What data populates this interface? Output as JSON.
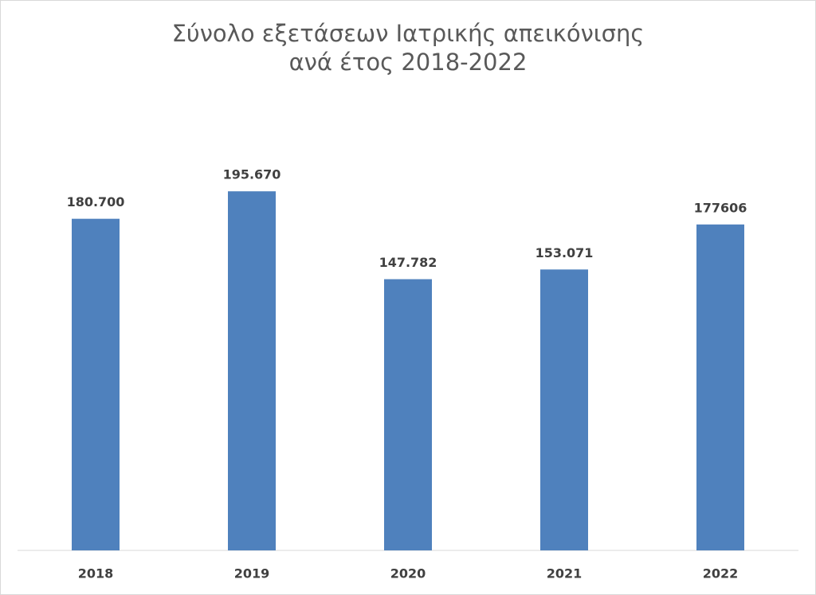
{
  "chart_data": {
    "type": "bar",
    "title": [
      "Σύνολο εξετάσεων Ιατρικής απεικόνισης",
      "ανά έτος 2018-2022"
    ],
    "categories": [
      "2018",
      "2019",
      "2020",
      "2021",
      "2022"
    ],
    "values": [
      180700,
      195670,
      147782,
      153071,
      177606
    ],
    "value_labels": [
      "180.700",
      "195.670",
      "147.782",
      "153.071",
      "177606"
    ],
    "color": "#4f81bd",
    "ylim": [
      0,
      250000
    ]
  }
}
